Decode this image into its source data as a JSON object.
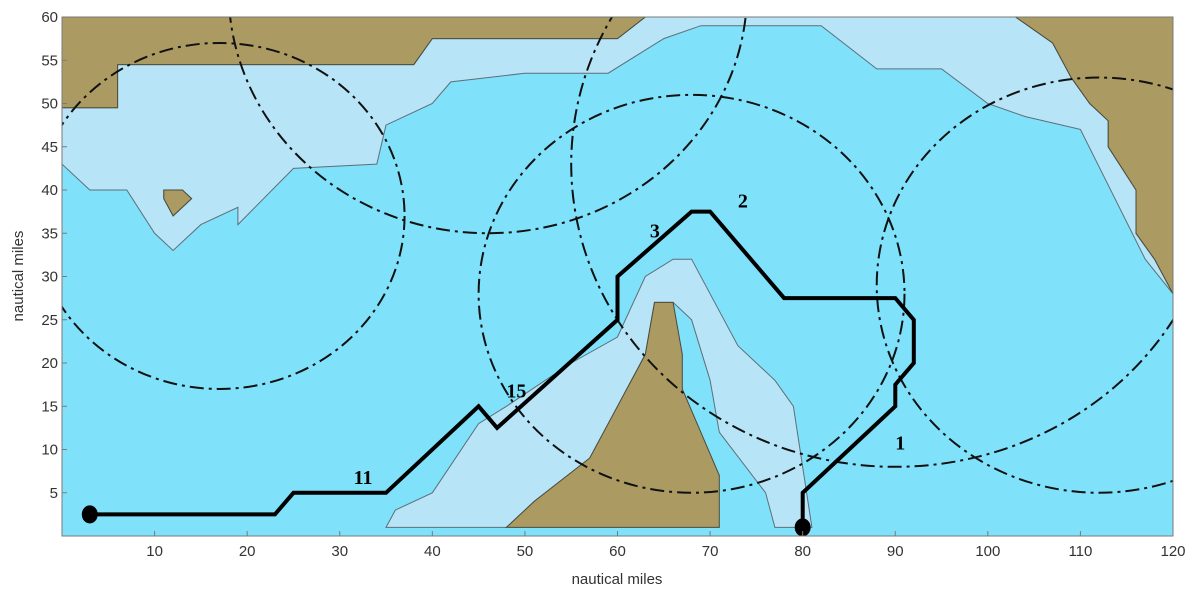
{
  "chart_data": {
    "type": "map",
    "xlabel": "nautical miles",
    "ylabel": "nautical miles",
    "xlim": [
      0,
      120
    ],
    "ylim": [
      0,
      60
    ],
    "xticks": [
      10,
      20,
      30,
      40,
      50,
      60,
      70,
      80,
      90,
      100,
      110,
      120
    ],
    "yticks": [
      5,
      10,
      15,
      20,
      25,
      30,
      35,
      40,
      45,
      50,
      55,
      60
    ],
    "colors": {
      "deep_water": "#80e1fa",
      "shallow_water": "#b8e4f7",
      "land": "#ab9b63",
      "route": "#000000",
      "coverage_circle": "#111111"
    },
    "regions": {
      "land": [
        [
          [
            0,
            60
          ],
          [
            0,
            49.5
          ],
          [
            6,
            49.5
          ],
          [
            6,
            54.5
          ],
          [
            38,
            54.5
          ],
          [
            40,
            57.5
          ],
          [
            60,
            57.5
          ],
          [
            63,
            60
          ]
        ],
        [
          [
            12,
            37
          ],
          [
            11,
            39
          ],
          [
            11,
            40
          ],
          [
            13,
            40
          ],
          [
            14,
            39
          ]
        ],
        [
          [
            48,
            1
          ],
          [
            51,
            4
          ],
          [
            57,
            9
          ],
          [
            60,
            15
          ],
          [
            63,
            21
          ],
          [
            64,
            27
          ],
          [
            66,
            27
          ],
          [
            67,
            21
          ],
          [
            67,
            17
          ],
          [
            69,
            12
          ],
          [
            71,
            7
          ],
          [
            71,
            1
          ]
        ],
        [
          [
            103,
            60
          ],
          [
            107,
            57
          ],
          [
            109,
            53
          ],
          [
            111,
            50
          ],
          [
            113,
            48
          ],
          [
            113,
            45
          ],
          [
            116,
            40
          ],
          [
            116,
            35
          ],
          [
            118,
            32
          ],
          [
            120,
            28
          ],
          [
            120,
            60
          ]
        ]
      ],
      "shallow": [
        [
          [
            0,
            49.5
          ],
          [
            0,
            43
          ],
          [
            3,
            40
          ],
          [
            7,
            40
          ],
          [
            10,
            35
          ],
          [
            12,
            33
          ],
          [
            15,
            36
          ],
          [
            19,
            38
          ],
          [
            19,
            36
          ],
          [
            25,
            42.5
          ],
          [
            34,
            43
          ],
          [
            35,
            47.5
          ],
          [
            40,
            50
          ],
          [
            42,
            52.5
          ],
          [
            50,
            53.5
          ],
          [
            59,
            53.5
          ],
          [
            65,
            57.5
          ],
          [
            69,
            59
          ],
          [
            82,
            59
          ],
          [
            88,
            54
          ],
          [
            95,
            54
          ],
          [
            100,
            50
          ],
          [
            104,
            48.5
          ],
          [
            110,
            47
          ],
          [
            117,
            32
          ],
          [
            120,
            28
          ],
          [
            120,
            60
          ],
          [
            103,
            60
          ],
          [
            107,
            57
          ],
          [
            109,
            53
          ],
          [
            111,
            50
          ],
          [
            113,
            48
          ],
          [
            113,
            45
          ],
          [
            116,
            40
          ],
          [
            116,
            35
          ],
          [
            118,
            32
          ],
          [
            120,
            28
          ],
          [
            120,
            60
          ],
          [
            63,
            60
          ],
          [
            60,
            57.5
          ],
          [
            40,
            57.5
          ],
          [
            38,
            54.5
          ],
          [
            6,
            54.5
          ],
          [
            6,
            49.5
          ]
        ],
        [
          [
            12,
            37
          ],
          [
            11,
            39
          ],
          [
            11,
            40
          ],
          [
            13,
            40
          ],
          [
            14,
            39
          ]
        ],
        [
          [
            35,
            1
          ],
          [
            36,
            3
          ],
          [
            40,
            5
          ],
          [
            45,
            13
          ],
          [
            48,
            15
          ],
          [
            55,
            20
          ],
          [
            60,
            23
          ],
          [
            63,
            30
          ],
          [
            66,
            32
          ],
          [
            68,
            32
          ],
          [
            70,
            28
          ],
          [
            73,
            22
          ],
          [
            77,
            18
          ],
          [
            79,
            15
          ],
          [
            81,
            1
          ],
          [
            77,
            1
          ],
          [
            76,
            5
          ],
          [
            71,
            12
          ],
          [
            70,
            18
          ],
          [
            68,
            25
          ],
          [
            66,
            27
          ],
          [
            64,
            27
          ],
          [
            63,
            21
          ],
          [
            60,
            15
          ],
          [
            57,
            9
          ],
          [
            51,
            4
          ],
          [
            48,
            1
          ]
        ]
      ]
    },
    "coverage_circles": [
      {
        "center": [
          17,
          37
        ],
        "radius": 20
      },
      {
        "center": [
          46,
          63
        ],
        "radius": 28
      },
      {
        "center": [
          68,
          28
        ],
        "radius": 23
      },
      {
        "center": [
          90,
          43
        ],
        "radius": 35
      },
      {
        "center": [
          112,
          29
        ],
        "radius": 24
      }
    ],
    "route": [
      [
        3,
        2.5
      ],
      [
        23,
        2.5
      ],
      [
        25,
        5
      ],
      [
        35,
        5
      ],
      [
        45,
        15
      ],
      [
        47,
        12.5
      ],
      [
        60,
        25
      ],
      [
        60,
        30
      ],
      [
        68,
        37.5
      ],
      [
        70,
        37.5
      ],
      [
        78,
        27.5
      ],
      [
        90,
        27.5
      ],
      [
        92,
        25
      ],
      [
        92,
        20
      ],
      [
        90,
        17.5
      ],
      [
        90,
        15
      ],
      [
        80,
        5
      ],
      [
        80,
        1
      ]
    ],
    "route_endpoints": [
      [
        3,
        2.5
      ],
      [
        80,
        1
      ]
    ],
    "waypoint_labels": [
      {
        "text": "1",
        "x": 90,
        "y": 10
      },
      {
        "text": "2",
        "x": 73,
        "y": 38
      },
      {
        "text": "3",
        "x": 63.5,
        "y": 34.5
      },
      {
        "text": "11",
        "x": 31.5,
        "y": 6
      },
      {
        "text": "15",
        "x": 48,
        "y": 16
      }
    ]
  }
}
